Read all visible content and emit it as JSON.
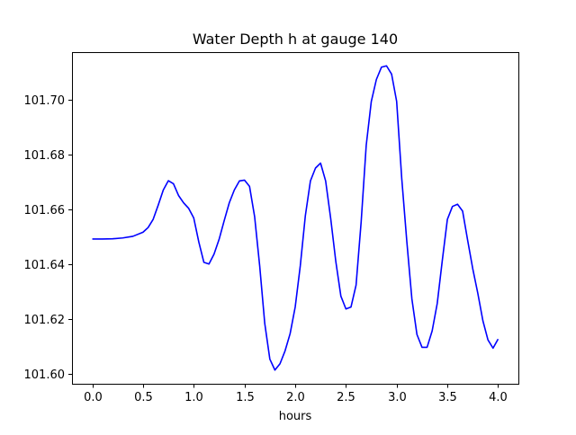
{
  "chart_data": {
    "type": "line",
    "title": "Water Depth h at gauge 140",
    "xlabel": "hours",
    "ylabel": "",
    "xlim": [
      -0.2,
      4.2
    ],
    "ylim": [
      101.5965,
      101.7175
    ],
    "xticks": [
      0.0,
      0.5,
      1.0,
      1.5,
      2.0,
      2.5,
      3.0,
      3.5,
      4.0
    ],
    "xtick_labels": [
      "0.0",
      "0.5",
      "1.0",
      "1.5",
      "2.0",
      "2.5",
      "3.0",
      "3.5",
      "4.0"
    ],
    "yticks": [
      101.6,
      101.62,
      101.64,
      101.66,
      101.68,
      101.7
    ],
    "ytick_labels": [
      "101.60",
      "101.62",
      "101.64",
      "101.66",
      "101.68",
      "101.70"
    ],
    "grid": false,
    "legend": "none",
    "series": [
      {
        "color": "#0000ff",
        "x": [
          0.0,
          0.1,
          0.2,
          0.3,
          0.4,
          0.5,
          0.55,
          0.6,
          0.65,
          0.7,
          0.75,
          0.8,
          0.85,
          0.9,
          0.95,
          1.0,
          1.05,
          1.1,
          1.15,
          1.2,
          1.25,
          1.3,
          1.35,
          1.4,
          1.45,
          1.5,
          1.55,
          1.6,
          1.65,
          1.7,
          1.75,
          1.8,
          1.85,
          1.9,
          1.95,
          2.0,
          2.05,
          2.1,
          2.15,
          2.2,
          2.25,
          2.3,
          2.35,
          2.4,
          2.45,
          2.5,
          2.55,
          2.6,
          2.65,
          2.7,
          2.75,
          2.8,
          2.85,
          2.9,
          2.95,
          3.0,
          3.05,
          3.1,
          3.15,
          3.2,
          3.25,
          3.3,
          3.35,
          3.4,
          3.45,
          3.5,
          3.55,
          3.6,
          3.65,
          3.7,
          3.75,
          3.8,
          3.85,
          3.9,
          3.95,
          4.0
        ],
        "y": [
          101.6493,
          101.6493,
          101.6494,
          101.6497,
          101.6503,
          101.6518,
          101.6535,
          101.6565,
          101.6617,
          101.6672,
          101.6706,
          101.6695,
          101.6652,
          101.6625,
          101.6605,
          101.657,
          101.6482,
          101.6408,
          101.6402,
          101.6438,
          101.6492,
          101.656,
          101.6625,
          101.6672,
          101.6705,
          101.6708,
          101.6685,
          101.6575,
          101.6395,
          101.6185,
          101.6055,
          101.6015,
          101.6038,
          101.6085,
          101.6148,
          101.6245,
          101.6395,
          101.6578,
          101.6705,
          101.6752,
          101.677,
          101.6705,
          101.6568,
          101.6412,
          101.6285,
          101.6238,
          101.6245,
          101.6325,
          101.6555,
          101.6835,
          101.6995,
          101.7075,
          101.712,
          101.7125,
          101.7095,
          101.6995,
          101.6715,
          101.6485,
          101.6275,
          101.6145,
          101.6098,
          101.6098,
          101.6158,
          101.6258,
          101.6415,
          101.6565,
          101.6612,
          101.662,
          101.6595,
          101.6488,
          101.6385,
          101.6295,
          101.6195,
          101.6125,
          101.6095,
          101.6128
        ]
      }
    ]
  }
}
